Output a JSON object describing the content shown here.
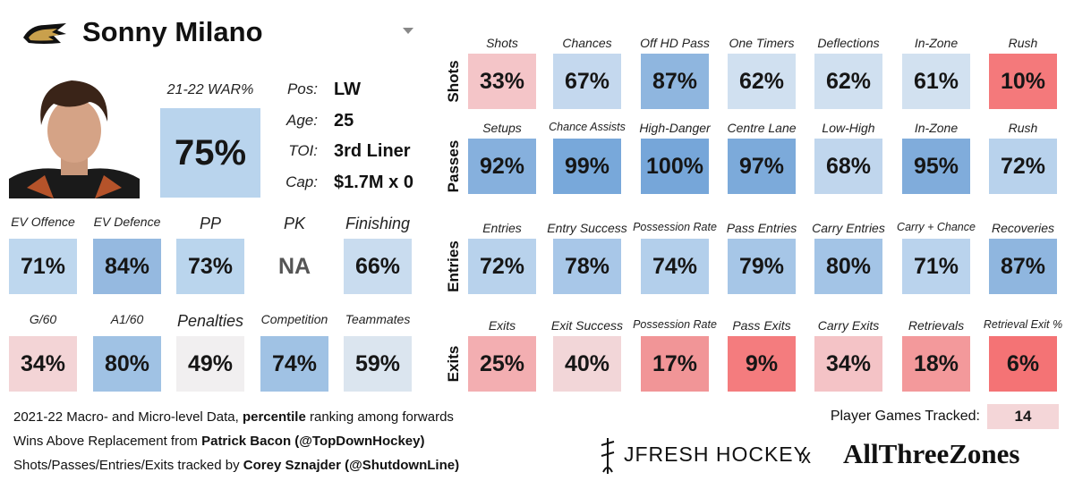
{
  "header": {
    "name": "Sonny Milano"
  },
  "summary": {
    "war_label": "21-22 WAR%",
    "war": {
      "value": "75%",
      "color": "#b9d4ed"
    },
    "info": [
      {
        "label": "Pos:",
        "value": "LW"
      },
      {
        "label": "Age:",
        "value": "25"
      },
      {
        "label": "TOI:",
        "value": "3rd Liner"
      },
      {
        "label": "Cap:",
        "value": "$1.7M x 0"
      }
    ]
  },
  "left_rows": [
    [
      {
        "label": "EV Offence",
        "value": "71%",
        "color": "#bed7ee"
      },
      {
        "label": "EV Defence",
        "value": "84%",
        "color": "#95b9e0"
      },
      {
        "label": "PP",
        "value": "73%",
        "color": "#bad5ed"
      },
      {
        "label": "PK",
        "value": "NA"
      },
      {
        "label": "Finishing",
        "value": "66%",
        "color": "#c9dcef"
      }
    ],
    [
      {
        "label": "G/60",
        "value": "34%",
        "color": "#f3d4d6"
      },
      {
        "label": "A1/60",
        "value": "80%",
        "color": "#a0c2e4"
      },
      {
        "label": "Penalties",
        "value": "49%",
        "color": "#f1eff0"
      },
      {
        "label": "Competition",
        "value": "74%",
        "color": "#a0c2e4"
      },
      {
        "label": "Teammates",
        "value": "59%",
        "color": "#dbe5ef"
      }
    ]
  ],
  "grid": [
    {
      "name": "Shots",
      "tiles": [
        {
          "label": "Shots",
          "value": "33%",
          "color": "#f4c5c8"
        },
        {
          "label": "Chances",
          "value": "67%",
          "color": "#c4d8ee"
        },
        {
          "label": "Off HD Pass",
          "value": "87%",
          "color": "#8fb6df"
        },
        {
          "label": "One Timers",
          "value": "62%",
          "color": "#d0e0f0"
        },
        {
          "label": "Deflections",
          "value": "62%",
          "color": "#d0e0f0"
        },
        {
          "label": "In-Zone",
          "value": "61%",
          "color": "#d2e1f0"
        },
        {
          "label": "Rush",
          "value": "10%",
          "color": "#f4797b"
        }
      ]
    },
    {
      "name": "Passes",
      "tiles": [
        {
          "label": "Setups",
          "value": "92%",
          "color": "#86b0dd"
        },
        {
          "label": "Chance Assists",
          "value": "99%",
          "color": "#78a8da"
        },
        {
          "label": "High-Danger",
          "value": "100%",
          "color": "#76a6d9"
        },
        {
          "label": "Centre Lane",
          "value": "97%",
          "color": "#7caada"
        },
        {
          "label": "Low-High",
          "value": "68%",
          "color": "#c0d6ed"
        },
        {
          "label": "In-Zone",
          "value": "95%",
          "color": "#80acdb"
        },
        {
          "label": "Rush",
          "value": "72%",
          "color": "#b8d2ec"
        }
      ]
    },
    {
      "name": "Entries",
      "tiles": [
        {
          "label": "Entries",
          "value": "72%",
          "color": "#b8d2ec"
        },
        {
          "label": "Entry Success",
          "value": "78%",
          "color": "#a8c7e8"
        },
        {
          "label": "Possession Rate",
          "value": "74%",
          "color": "#b3cfeb"
        },
        {
          "label": "Pass Entries",
          "value": "79%",
          "color": "#a6c6e7"
        },
        {
          "label": "Carry Entries",
          "value": "80%",
          "color": "#a3c4e6"
        },
        {
          "label": "Carry + Chance",
          "value": "71%",
          "color": "#bad3ed"
        },
        {
          "label": "Recoveries",
          "value": "87%",
          "color": "#8fb6df"
        }
      ]
    },
    {
      "name": "Exits",
      "tiles": [
        {
          "label": "Exits",
          "value": "25%",
          "color": "#f3aeb1"
        },
        {
          "label": "Exit Success",
          "value": "40%",
          "color": "#f2d6d8"
        },
        {
          "label": "Possession Rate",
          "value": "17%",
          "color": "#f19597"
        },
        {
          "label": "Pass Exits",
          "value": "9%",
          "color": "#f47c7e"
        },
        {
          "label": "Carry Exits",
          "value": "34%",
          "color": "#f4c3c6"
        },
        {
          "label": "Retrievals",
          "value": "18%",
          "color": "#f3999b"
        },
        {
          "label": "Retrieval Exit %",
          "value": "6%",
          "color": "#f47375"
        }
      ]
    }
  ],
  "footer": {
    "lines": [
      [
        {
          "text": "2021-22 Macro- and Micro-level Data, ",
          "bold": false
        },
        {
          "text": "percentile",
          "bold": true
        },
        {
          "text": " ranking among forwards",
          "bold": false
        }
      ],
      [
        {
          "text": "Wins Above Replacement from ",
          "bold": false
        },
        {
          "text": "Patrick Bacon (@TopDownHockey)",
          "bold": true
        }
      ],
      [
        {
          "text": "Shots/Passes/Entries/Exits tracked by ",
          "bold": false
        },
        {
          "text": "Corey Sznajder (@ShutdownLine)",
          "bold": true
        }
      ]
    ],
    "games_label": "Player Games Tracked:",
    "games": "14",
    "games_color": "#f4d6d8",
    "brand": "JFRESH HOCKEY",
    "separator": "x",
    "partner": "AllThreeZones"
  }
}
